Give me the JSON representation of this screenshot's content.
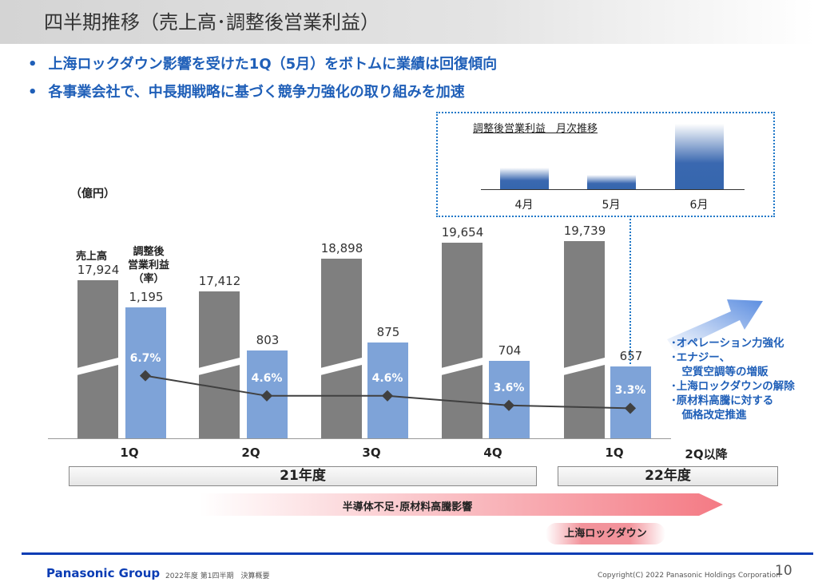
{
  "title": "四半期推移（売上高･調整後営業利益）",
  "bullets": [
    "上海ロックダウン影響を受けた1Q（5月）をボトムに業績は回復傾向",
    "各事業会社で、中長期戦略に基づく競争力強化の取り組みを加速"
  ],
  "bullet_symbol": "•",
  "unit": "（億円）",
  "legend": {
    "sales": "売上高",
    "profit_line1": "調整後",
    "profit_line2": "営業利益",
    "profit_line3": "（率）"
  },
  "chart_data": {
    "type": "bar",
    "categories": [
      "1Q",
      "2Q",
      "3Q",
      "4Q",
      "1Q"
    ],
    "fiscal_years": [
      {
        "label": "21年度",
        "quarters": 4
      },
      {
        "label": "22年度",
        "quarters": 1
      }
    ],
    "extra_category": "2Q以降",
    "series": [
      {
        "name": "売上高",
        "values": [
          17924,
          17412,
          18898,
          19654,
          19739
        ],
        "labels": [
          "17,924",
          "17,412",
          "18,898",
          "19,654",
          "19,739"
        ],
        "color": "#7f7f7f"
      },
      {
        "name": "調整後営業利益",
        "values": [
          1195,
          803,
          875,
          704,
          657
        ],
        "labels": [
          "1,195",
          "803",
          "875",
          "704",
          "657"
        ],
        "color": "#7ea3d8"
      },
      {
        "name": "調整後営業利益率",
        "type": "line",
        "values": [
          6.7,
          4.6,
          4.6,
          3.6,
          3.3
        ],
        "labels": [
          "6.7%",
          "4.6%",
          "4.6%",
          "3.6%",
          "3.3%"
        ],
        "color": "#404040"
      }
    ],
    "inset": {
      "title": "調整後営業利益　月次推移",
      "categories": [
        "4月",
        "5月",
        "6月"
      ],
      "relative_values": [
        27,
        18,
        82
      ],
      "color": "#3566ad"
    }
  },
  "outlook": [
    "･オペレーション力強化",
    "･エナジー、",
    "　空質空調等の増販",
    "･上海ロックダウンの解除",
    "･原材料高騰に対する",
    "　価格改定推進"
  ],
  "headwind": "半導体不足･原材料高騰影響",
  "lockdown": "上海ロックダウン",
  "footer": {
    "brand": "Panasonic Group",
    "subtitle": "2022年度 第1四半期　決算概要",
    "copyright": "Copyright(C) 2022 Panasonic Holdings Corporation",
    "page": "10"
  },
  "colors": {
    "accent": "#1f5fb8",
    "footer_line": "#0a3cb4"
  }
}
